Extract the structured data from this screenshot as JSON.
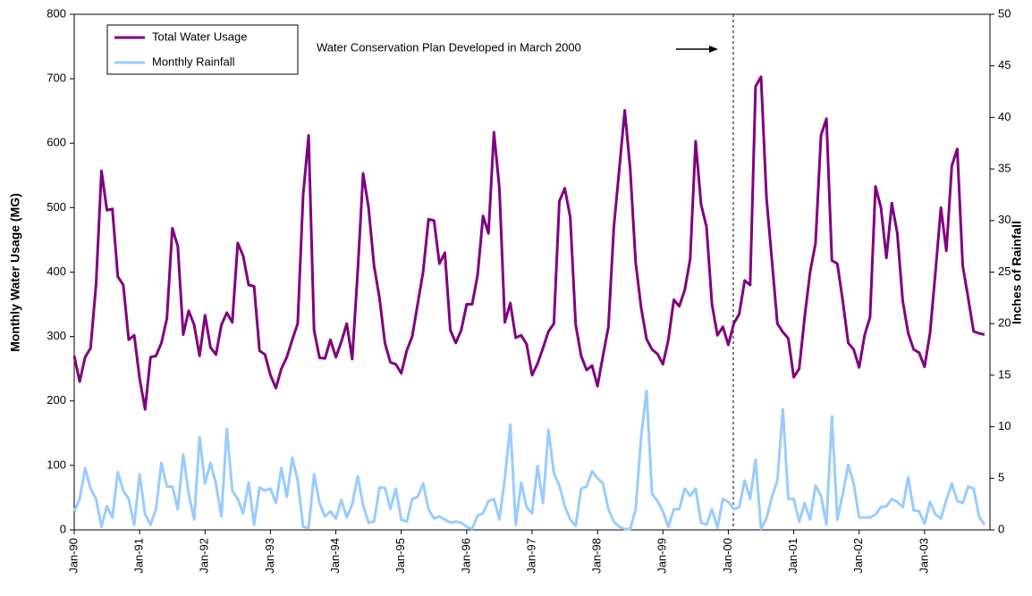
{
  "chart_data": {
    "type": "line",
    "categories": [
      "Jan-90",
      null,
      null,
      null,
      null,
      null,
      null,
      null,
      null,
      null,
      null,
      null,
      "Jan-91",
      null,
      null,
      null,
      null,
      null,
      null,
      null,
      null,
      null,
      null,
      null,
      "Jan-92",
      null,
      null,
      null,
      null,
      null,
      null,
      null,
      null,
      null,
      null,
      null,
      "Jan-93",
      null,
      null,
      null,
      null,
      null,
      null,
      null,
      null,
      null,
      null,
      null,
      "Jan-94",
      null,
      null,
      null,
      null,
      null,
      null,
      null,
      null,
      null,
      null,
      null,
      "Jan-95",
      null,
      null,
      null,
      null,
      null,
      null,
      null,
      null,
      null,
      null,
      null,
      "Jan-96",
      null,
      null,
      null,
      null,
      null,
      null,
      null,
      null,
      null,
      null,
      null,
      "Jan-97",
      null,
      null,
      null,
      null,
      null,
      null,
      null,
      null,
      null,
      null,
      null,
      "Jan-98",
      null,
      null,
      null,
      null,
      null,
      null,
      null,
      null,
      null,
      null,
      null,
      "Jan-99",
      null,
      null,
      null,
      null,
      null,
      null,
      null,
      null,
      null,
      null,
      null,
      "Jan-00",
      null,
      null,
      null,
      null,
      null,
      null,
      null,
      null,
      null,
      null,
      null,
      "Jan-01",
      null,
      null,
      null,
      null,
      null,
      null,
      null,
      null,
      null,
      null,
      null,
      "Jan-02",
      null,
      null,
      null,
      null,
      null,
      null,
      null,
      null,
      null,
      null,
      null,
      "Jan-03",
      null,
      null,
      null,
      null,
      null,
      null,
      null,
      null,
      null,
      null,
      null
    ],
    "series": [
      {
        "name": "Total Water Usage",
        "color": "#800080",
        "axis": "y",
        "values": [
          270,
          230,
          268,
          282,
          380,
          557,
          496,
          498,
          393,
          380,
          295,
          302,
          235,
          187,
          268,
          270,
          290,
          328,
          468,
          440,
          303,
          340,
          318,
          270,
          333,
          283,
          272,
          318,
          337,
          322,
          445,
          425,
          380,
          378,
          278,
          272,
          240,
          220,
          250,
          268,
          295,
          320,
          520,
          612,
          310,
          267,
          266,
          295,
          268,
          292,
          320,
          265,
          400,
          553,
          500,
          410,
          360,
          290,
          260,
          257,
          243,
          278,
          300,
          350,
          400,
          482,
          480,
          413,
          430,
          310,
          290,
          310,
          350,
          350,
          395,
          487,
          460,
          617,
          530,
          322,
          352,
          298,
          302,
          288,
          240,
          258,
          282,
          308,
          320,
          510,
          530,
          485,
          318,
          270,
          248,
          255,
          223,
          270,
          315,
          470,
          560,
          651,
          560,
          415,
          345,
          296,
          280,
          273,
          257,
          295,
          357,
          347,
          372,
          420,
          603,
          505,
          470,
          350,
          302,
          315,
          287,
          320,
          335,
          387,
          380,
          688,
          703,
          515,
          418,
          320,
          307,
          297,
          237,
          250,
          330,
          400,
          445,
          612,
          638,
          418,
          413,
          355,
          290,
          280,
          252,
          302,
          330,
          533,
          500,
          422,
          507,
          460,
          355,
          305,
          280,
          275,
          253,
          305,
          400,
          500,
          433,
          565,
          591,
          410,
          360,
          308,
          305,
          303
        ]
      },
      {
        "name": "Monthly Rainfall",
        "color": "#99ccff",
        "axis": "y2",
        "values": [
          1.8,
          3.0,
          6.0,
          4.0,
          3.0,
          0.3,
          2.3,
          1.2,
          5.6,
          3.8,
          3.0,
          0.5,
          5.4,
          1.5,
          0.5,
          2.0,
          6.5,
          4.2,
          4.2,
          2.0,
          7.3,
          3.5,
          1.0,
          9.0,
          4.5,
          6.5,
          4.5,
          1.3,
          9.8,
          3.8,
          3.0,
          1.6,
          4.6,
          0.5,
          4.1,
          3.8,
          4.0,
          2.6,
          6.0,
          3.2,
          7.0,
          4.8,
          0.3,
          0.2,
          5.4,
          2.6,
          1.3,
          1.8,
          1.1,
          2.9,
          1.2,
          2.5,
          5.2,
          2.4,
          0.7,
          0.8,
          4.1,
          4.1,
          2.0,
          4.0,
          1.0,
          0.8,
          3.0,
          3.2,
          4.5,
          2.0,
          1.1,
          1.3,
          1.0,
          0.7,
          0.8,
          0.7,
          0.3,
          0.1,
          1.4,
          1.6,
          2.8,
          3.0,
          1.0,
          5.0,
          10.2,
          0.5,
          4.6,
          2.2,
          1.6,
          6.2,
          2.6,
          9.7,
          5.5,
          4.3,
          2.3,
          1.0,
          0.4,
          4.0,
          4.2,
          5.7,
          5.0,
          4.5,
          2.0,
          0.8,
          0.3,
          0.1,
          0.1,
          2.0,
          9.0,
          13.5,
          3.5,
          2.8,
          1.8,
          0.3,
          2.0,
          2.0,
          4.0,
          3.3,
          4.0,
          0.7,
          0.5,
          2.0,
          0.2,
          3.0,
          2.7,
          2.0,
          2.2,
          4.8,
          3.0,
          6.8,
          0.1,
          1.1,
          3.2,
          4.8,
          11.7,
          3.0,
          3.0,
          0.8,
          2.6,
          1.0,
          4.3,
          3.3,
          0.5,
          11.0,
          1.0,
          3.5,
          6.3,
          4.5,
          1.2,
          1.2,
          1.2,
          1.5,
          2.2,
          2.3,
          3.0,
          2.7,
          2.2,
          5.1,
          1.9,
          1.8,
          0.6,
          2.7,
          1.5,
          1.1,
          2.9,
          4.5,
          2.8,
          2.6,
          4.2,
          4.0,
          1.3,
          0.5
        ]
      }
    ],
    "ylabel": "Monthly Water Usage (MG)",
    "y2label": "Inches of Rainfall",
    "ylim": [
      0,
      800
    ],
    "yticks": [
      0,
      100,
      200,
      300,
      400,
      500,
      600,
      700,
      800
    ],
    "y2lim": [
      0,
      50
    ],
    "y2ticks": [
      0,
      5,
      10,
      15,
      20,
      25,
      30,
      35,
      40,
      45,
      50
    ],
    "annotation": "Water Conservation Plan Developed in March 2000",
    "legend": "upper-left",
    "grid": false
  }
}
